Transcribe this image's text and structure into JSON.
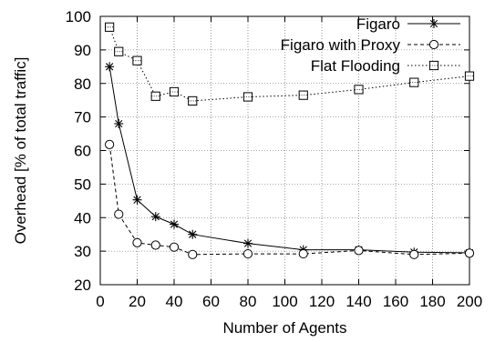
{
  "chart_data": {
    "type": "line",
    "xlabel": "Number of Agents",
    "ylabel": "Overhead [% of total traffic]",
    "xlim": [
      0,
      200
    ],
    "ylim": [
      20,
      100
    ],
    "xticks": [
      0,
      20,
      40,
      60,
      80,
      100,
      120,
      140,
      160,
      180,
      200
    ],
    "yticks": [
      20,
      30,
      40,
      50,
      60,
      70,
      80,
      90,
      100
    ],
    "grid": true,
    "legend_position": "top-right",
    "series": [
      {
        "name": "Figaro",
        "marker": "asterisk",
        "line": "solid",
        "color": "#000000",
        "x": [
          5,
          10,
          20,
          30,
          40,
          50,
          80,
          110,
          140,
          170,
          200
        ],
        "y": [
          85,
          68,
          45.3,
          40.3,
          38,
          35,
          32.3,
          30.4,
          30.4,
          29.7,
          29.5
        ]
      },
      {
        "name": "Figaro with Proxy",
        "marker": "circle",
        "line": "dashed",
        "color": "#000000",
        "x": [
          5,
          10,
          20,
          30,
          40,
          50,
          80,
          110,
          140,
          170,
          200
        ],
        "y": [
          61.8,
          41,
          32.5,
          31.8,
          31.2,
          29,
          29.2,
          29.2,
          30.2,
          29,
          29.4
        ]
      },
      {
        "name": "Flat Flooding",
        "marker": "square",
        "line": "dotted",
        "color": "#000000",
        "x": [
          5,
          10,
          20,
          30,
          40,
          50,
          80,
          110,
          140,
          170,
          200
        ],
        "y": [
          96.8,
          89.5,
          86.8,
          76.2,
          77.5,
          74.8,
          76,
          76.5,
          78.2,
          80.3,
          82.2
        ]
      }
    ]
  }
}
